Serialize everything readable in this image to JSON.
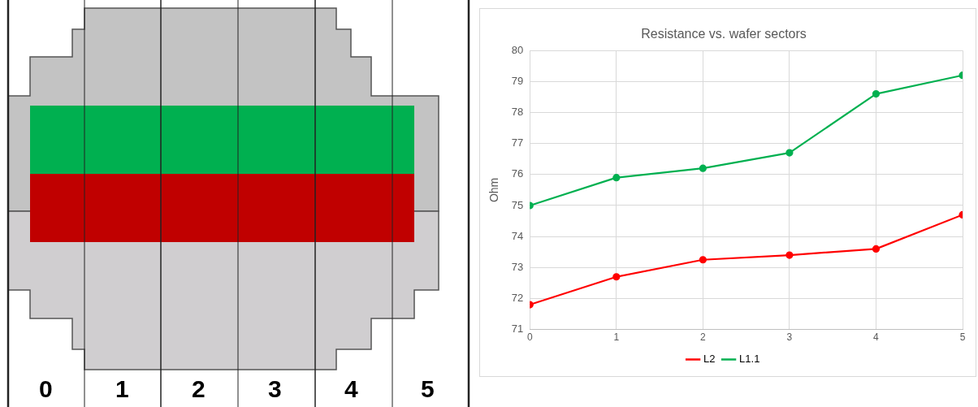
{
  "chart_data": [
    {
      "type": "other",
      "annotations": [
        "0 1 2 3 4 5"
      ]
    },
    {
      "type": "line",
      "title": "Resistance vs. wafer sectors",
      "ylabel": "Ohm",
      "x": [
        0,
        1,
        2,
        3,
        4,
        5
      ],
      "xlim": [
        0,
        5
      ],
      "xticks": [
        0,
        1,
        2,
        3,
        4,
        5
      ],
      "ylim": [
        71,
        80
      ],
      "yticks": [
        71,
        72,
        73,
        74,
        75,
        76,
        77,
        78,
        79,
        80
      ],
      "grid": true,
      "legend": "bottom",
      "marker": "circle",
      "series": [
        {
          "name": "L2",
          "color": "#ff0000",
          "values": [
            71.8,
            72.7,
            73.25,
            73.4,
            73.6,
            74.7
          ]
        },
        {
          "name": "L1.1",
          "color": "#00b050",
          "values": [
            75.0,
            75.9,
            76.2,
            76.7,
            78.6,
            79.2
          ]
        }
      ]
    }
  ]
}
